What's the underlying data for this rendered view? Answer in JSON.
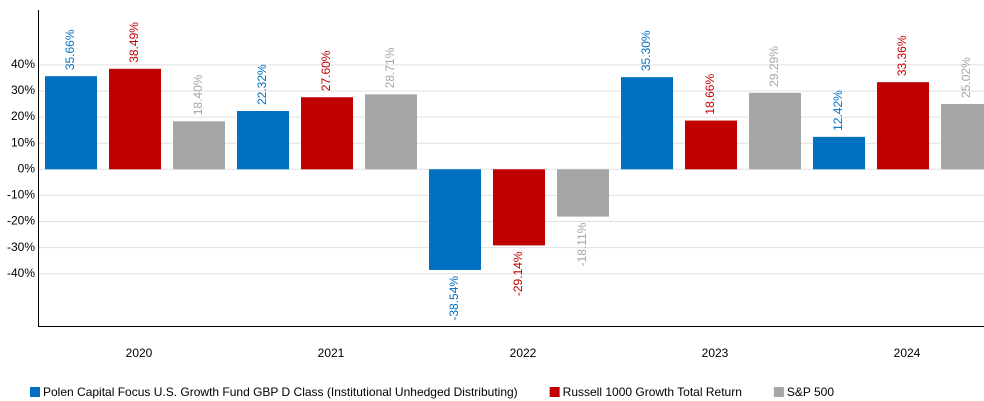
{
  "chart_data": {
    "type": "bar",
    "categories": [
      "2020",
      "2021",
      "2022",
      "2023",
      "2024"
    ],
    "series": [
      {
        "name": "Polen Capital Focus U.S. Growth Fund GBP D Class (Institutional Unhedged Distributing)",
        "color": "#0070c0",
        "values": [
          35.66,
          22.32,
          -38.54,
          35.3,
          12.42
        ],
        "value_labels": [
          "35.66%",
          "22.32%",
          "-38.54%",
          "35.30%",
          "12.42%"
        ]
      },
      {
        "name": "Russell 1000 Growth Total Return",
        "color": "#c00000",
        "values": [
          38.49,
          27.6,
          -29.14,
          18.66,
          33.36
        ],
        "value_labels": [
          "38.49%",
          "27.60%",
          "-29.14%",
          "18.66%",
          "33.36%"
        ]
      },
      {
        "name": "S&P 500",
        "color": "#a6a6a6",
        "values": [
          18.4,
          28.71,
          -18.11,
          29.29,
          25.02
        ],
        "value_labels": [
          "18.40%",
          "28.71%",
          "-18.11%",
          "29.29%",
          "25.02%"
        ]
      }
    ],
    "ylim": [
      -60,
      61
    ],
    "yticks": [
      {
        "value": 40,
        "label": "40%"
      },
      {
        "value": 30,
        "label": "30%"
      },
      {
        "value": 20,
        "label": "20%"
      },
      {
        "value": 10,
        "label": "10%"
      },
      {
        "value": 0,
        "label": "0%"
      },
      {
        "value": -10,
        "label": "-10%"
      },
      {
        "value": -20,
        "label": "-20%"
      },
      {
        "value": -30,
        "label": "-30%"
      },
      {
        "value": -40,
        "label": "-40%"
      }
    ],
    "grid": true
  }
}
